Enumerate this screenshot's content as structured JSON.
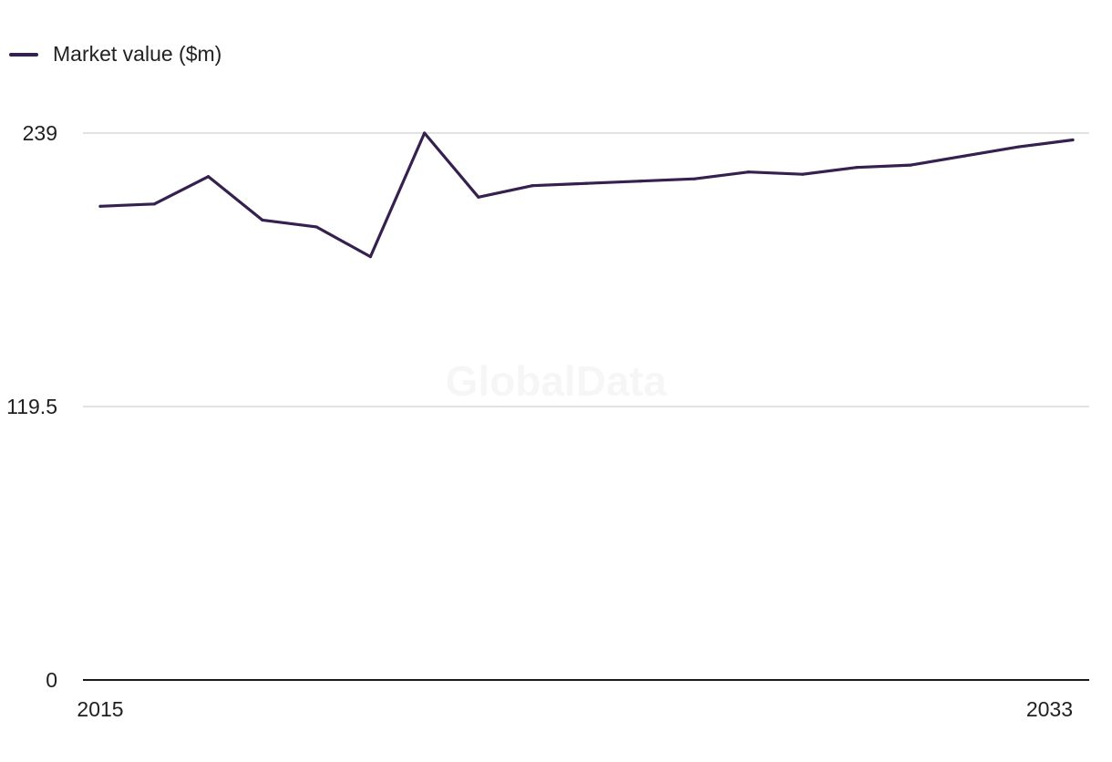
{
  "legend": {
    "label": "Market value ($m)"
  },
  "watermark": "GlobalData",
  "colors": {
    "series": "#35204f",
    "grid": "#d9d9d9",
    "axis": "#1a1a1a"
  },
  "chart_data": {
    "type": "line",
    "title": "",
    "xlabel": "",
    "ylabel": "",
    "x": [
      2015,
      2016,
      2017,
      2018,
      2019,
      2020,
      2021,
      2022,
      2023,
      2024,
      2025,
      2026,
      2027,
      2028,
      2029,
      2030,
      2031,
      2032,
      2033
    ],
    "x_tick_labels": [
      "2015",
      "2033"
    ],
    "y_ticks": [
      0,
      119.5,
      239
    ],
    "y_tick_labels": [
      "0",
      "119.5",
      "239"
    ],
    "ylim": [
      0,
      239
    ],
    "xlim": [
      2015,
      2033
    ],
    "grid": true,
    "legend_position": "top-left",
    "series": [
      {
        "name": "Market value ($m)",
        "values": [
          207,
          208,
          220,
          201,
          198,
          185,
          239,
          211,
          216,
          217,
          218,
          219,
          222,
          221,
          224,
          225,
          229,
          233,
          236
        ]
      }
    ]
  }
}
